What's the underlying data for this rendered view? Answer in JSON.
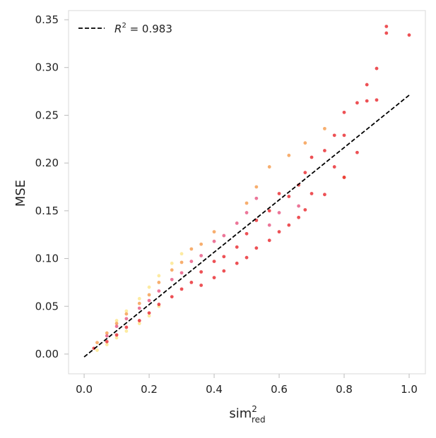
{
  "chart_data": {
    "type": "scatter",
    "xlabel": {
      "base": "sim",
      "sup": "2",
      "sub": "red"
    },
    "ylabel": "MSE",
    "xlim": [
      -0.048,
      1.05
    ],
    "ylim": [
      -0.0207,
      0.3596
    ],
    "xticks": [
      {
        "value": 0,
        "label": "0.0"
      },
      0.2,
      0.4,
      0.6,
      0.8,
      {
        "value": 1,
        "label": "1.0"
      }
    ],
    "yticks": [
      {
        "value": 0,
        "label": "0.00"
      },
      0.05,
      {
        "value": 0.1,
        "label": "0.10"
      },
      0.15,
      {
        "value": 0.2,
        "label": "0.20"
      },
      0.25,
      {
        "value": 0.3,
        "label": "0.30"
      },
      0.35
    ],
    "grid": false,
    "legend": "upper left",
    "fit": {
      "label": {
        "base": "R",
        "sup": "2",
        "rest": " = 0.983"
      },
      "color": "#000000",
      "x": [
        0,
        1.0
      ],
      "values": [
        -0.003,
        0.271
      ]
    },
    "series": [
      {
        "color": "#fde68a",
        "x": [
          0.3,
          0.27,
          0.23,
          0.2,
          0.17,
          0.2,
          0.17,
          0.13,
          0.1,
          0.07,
          0.04,
          0.23,
          0.13,
          0.1
        ],
        "values": [
          0.105,
          0.095,
          0.082,
          0.07,
          0.058,
          0.04,
          0.032,
          0.024,
          0.017,
          0.01,
          0.004,
          0.05,
          0.045,
          0.035
        ]
      },
      {
        "color": "#f59a4a",
        "x": [
          0.74,
          0.68,
          0.63,
          0.57,
          0.53,
          0.5,
          0.4,
          0.36,
          0.33,
          0.3,
          0.27,
          0.23,
          0.2,
          0.17,
          0.13,
          0.1,
          0.07,
          0.04,
          0.8
        ],
        "values": [
          0.236,
          0.221,
          0.208,
          0.196,
          0.175,
          0.158,
          0.128,
          0.115,
          0.11,
          0.096,
          0.088,
          0.075,
          0.062,
          0.053,
          0.042,
          0.032,
          0.022,
          0.012,
          0.185
        ]
      },
      {
        "color": "#e75480",
        "x": [
          0.53,
          0.5,
          0.47,
          0.43,
          0.4,
          0.36,
          0.33,
          0.3,
          0.27,
          0.23,
          0.2,
          0.17,
          0.13,
          0.1,
          0.07,
          0.6,
          0.66,
          0.57
        ],
        "values": [
          0.163,
          0.148,
          0.137,
          0.124,
          0.118,
          0.103,
          0.097,
          0.085,
          0.078,
          0.066,
          0.056,
          0.048,
          0.037,
          0.029,
          0.019,
          0.148,
          0.155,
          0.135
        ]
      },
      {
        "color": "#e8262a",
        "x": [
          1.0,
          0.93,
          0.93,
          0.9,
          0.9,
          0.87,
          0.87,
          0.84,
          0.84,
          0.8,
          0.8,
          0.8,
          0.77,
          0.77,
          0.74,
          0.74,
          0.7,
          0.7,
          0.68,
          0.68,
          0.66,
          0.66,
          0.63,
          0.63,
          0.6,
          0.6,
          0.57,
          0.57,
          0.53,
          0.53,
          0.5,
          0.5,
          0.47,
          0.47,
          0.43,
          0.43,
          0.4,
          0.4,
          0.36,
          0.36,
          0.33,
          0.3,
          0.27,
          0.23,
          0.2,
          0.17,
          0.13,
          0.1,
          0.07,
          0.03
        ],
        "values": [
          0.334,
          0.343,
          0.336,
          0.299,
          0.266,
          0.282,
          0.265,
          0.263,
          0.211,
          0.253,
          0.229,
          0.185,
          0.229,
          0.196,
          0.213,
          0.167,
          0.206,
          0.168,
          0.19,
          0.151,
          0.177,
          0.143,
          0.165,
          0.135,
          0.168,
          0.128,
          0.15,
          0.119,
          0.14,
          0.111,
          0.126,
          0.101,
          0.112,
          0.095,
          0.102,
          0.087,
          0.097,
          0.08,
          0.086,
          0.072,
          0.075,
          0.068,
          0.06,
          0.052,
          0.043,
          0.035,
          0.028,
          0.02,
          0.013,
          0.006
        ]
      }
    ]
  }
}
